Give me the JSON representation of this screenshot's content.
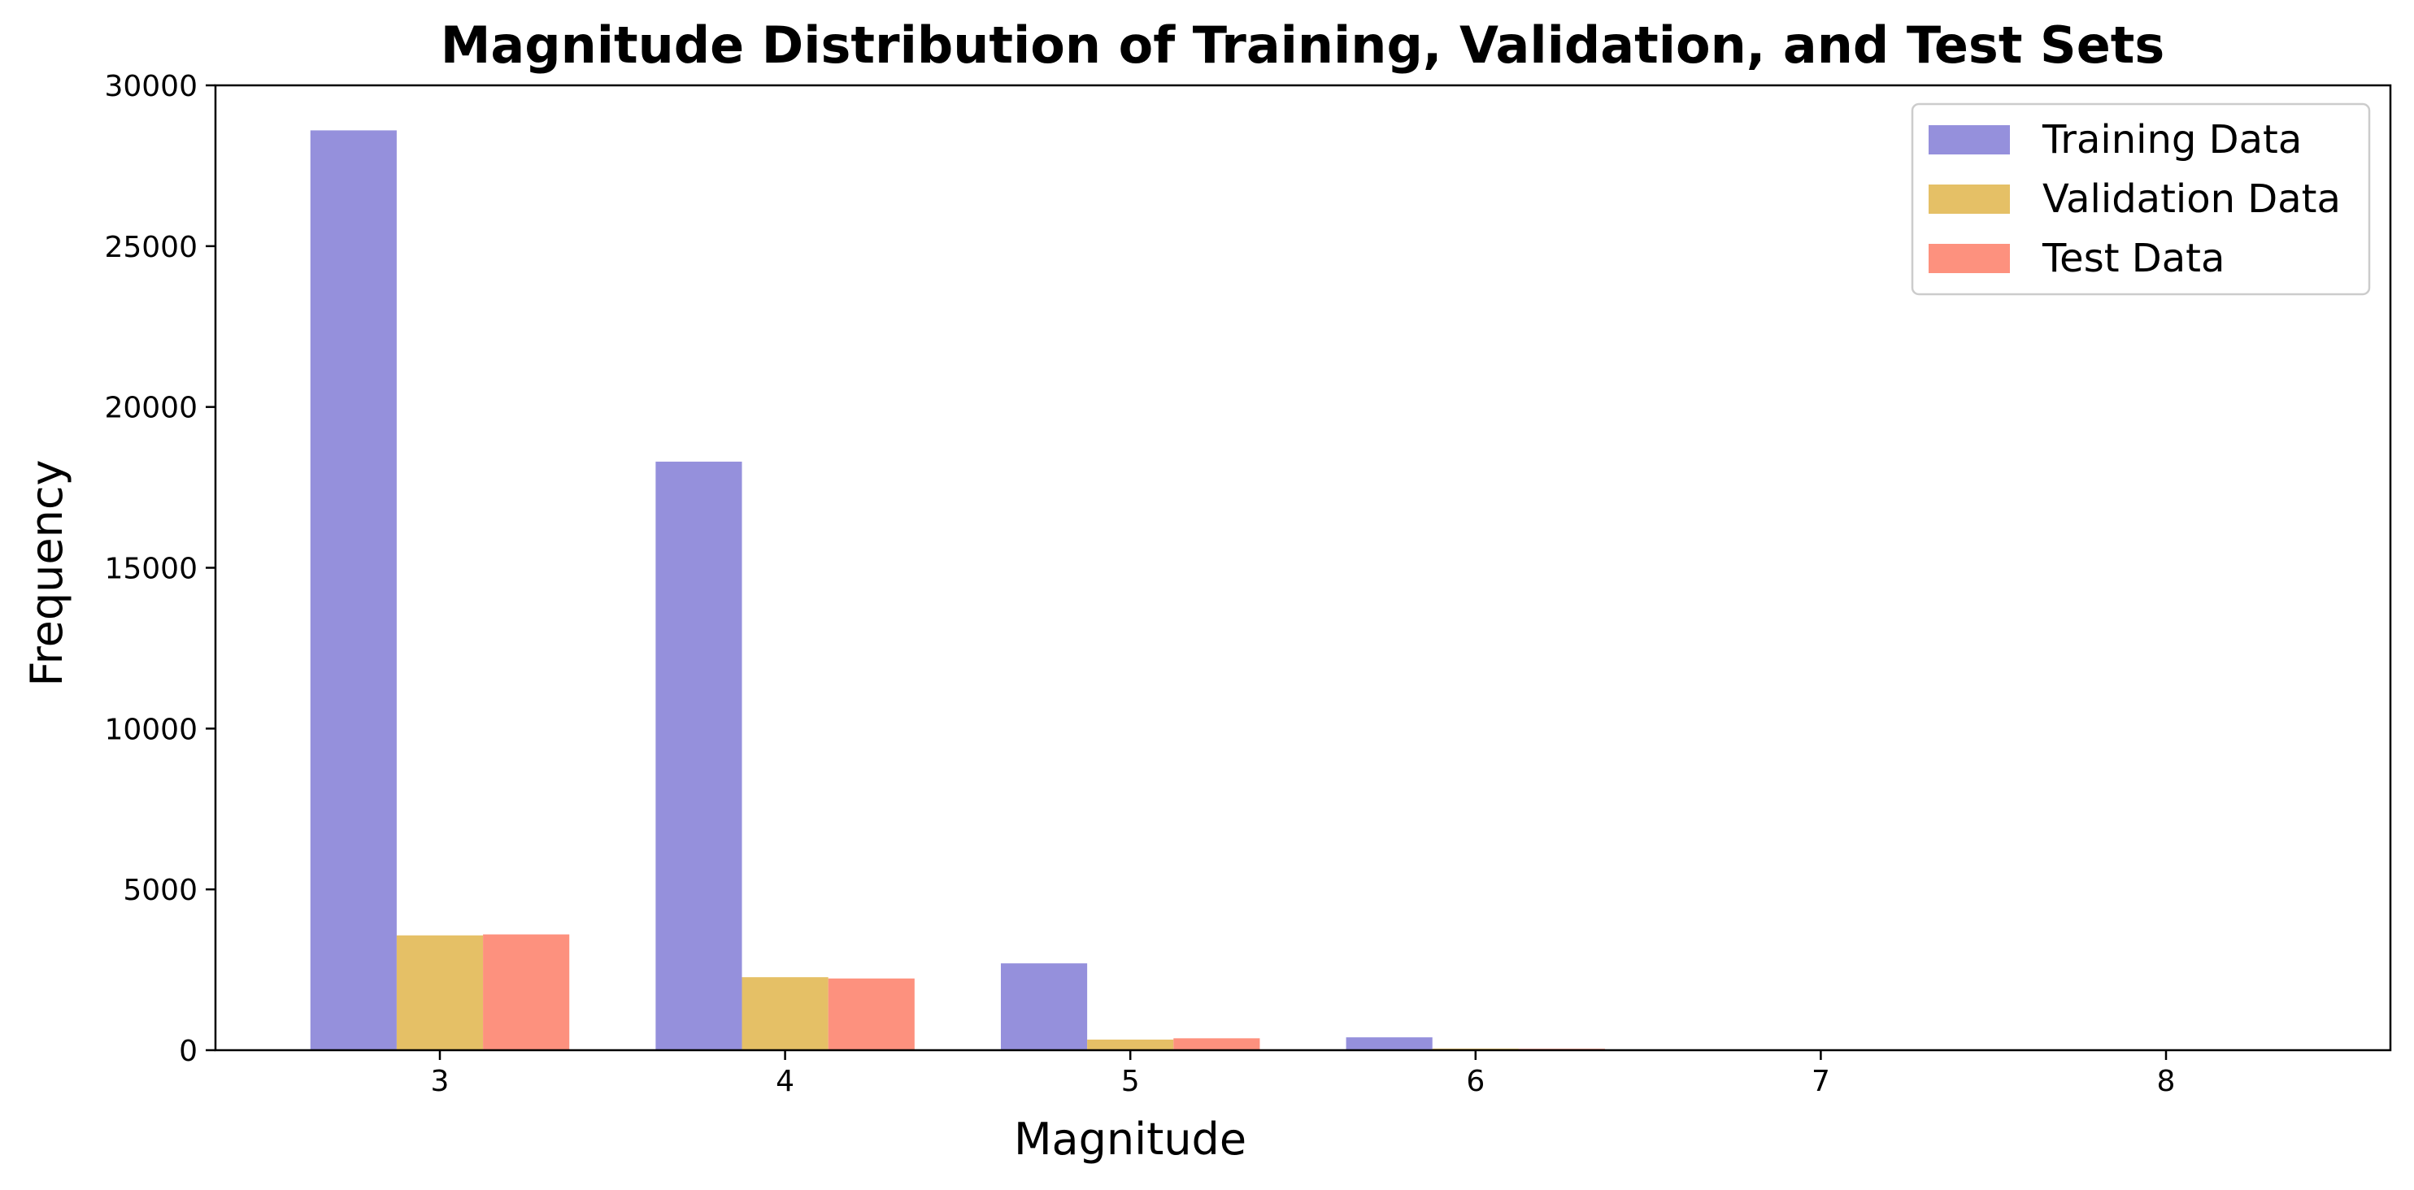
{
  "chart_data": {
    "type": "bar",
    "title": "Magnitude Distribution of Training, Validation, and Test Sets",
    "xlabel": "Magnitude",
    "ylabel": "Frequency",
    "categories": [
      "3",
      "4",
      "5",
      "6",
      "7",
      "8"
    ],
    "x_values": [
      3,
      4,
      5,
      6,
      7,
      8
    ],
    "xlim": [
      2.35,
      8.65
    ],
    "ylim": [
      0,
      30000
    ],
    "yticks": [
      0,
      5000,
      10000,
      15000,
      20000,
      25000,
      30000
    ],
    "legend_position": "top-right",
    "grid": false,
    "series": [
      {
        "name": "Training Data",
        "color": "#9590dc",
        "values": [
          28600,
          18300,
          2700,
          400,
          20,
          2
        ]
      },
      {
        "name": "Validation Data",
        "color": "#e5c066",
        "values": [
          3570,
          2270,
          330,
          50,
          3,
          0
        ]
      },
      {
        "name": "Test Data",
        "color": "#fd917e",
        "values": [
          3600,
          2230,
          370,
          45,
          3,
          0
        ]
      }
    ]
  }
}
